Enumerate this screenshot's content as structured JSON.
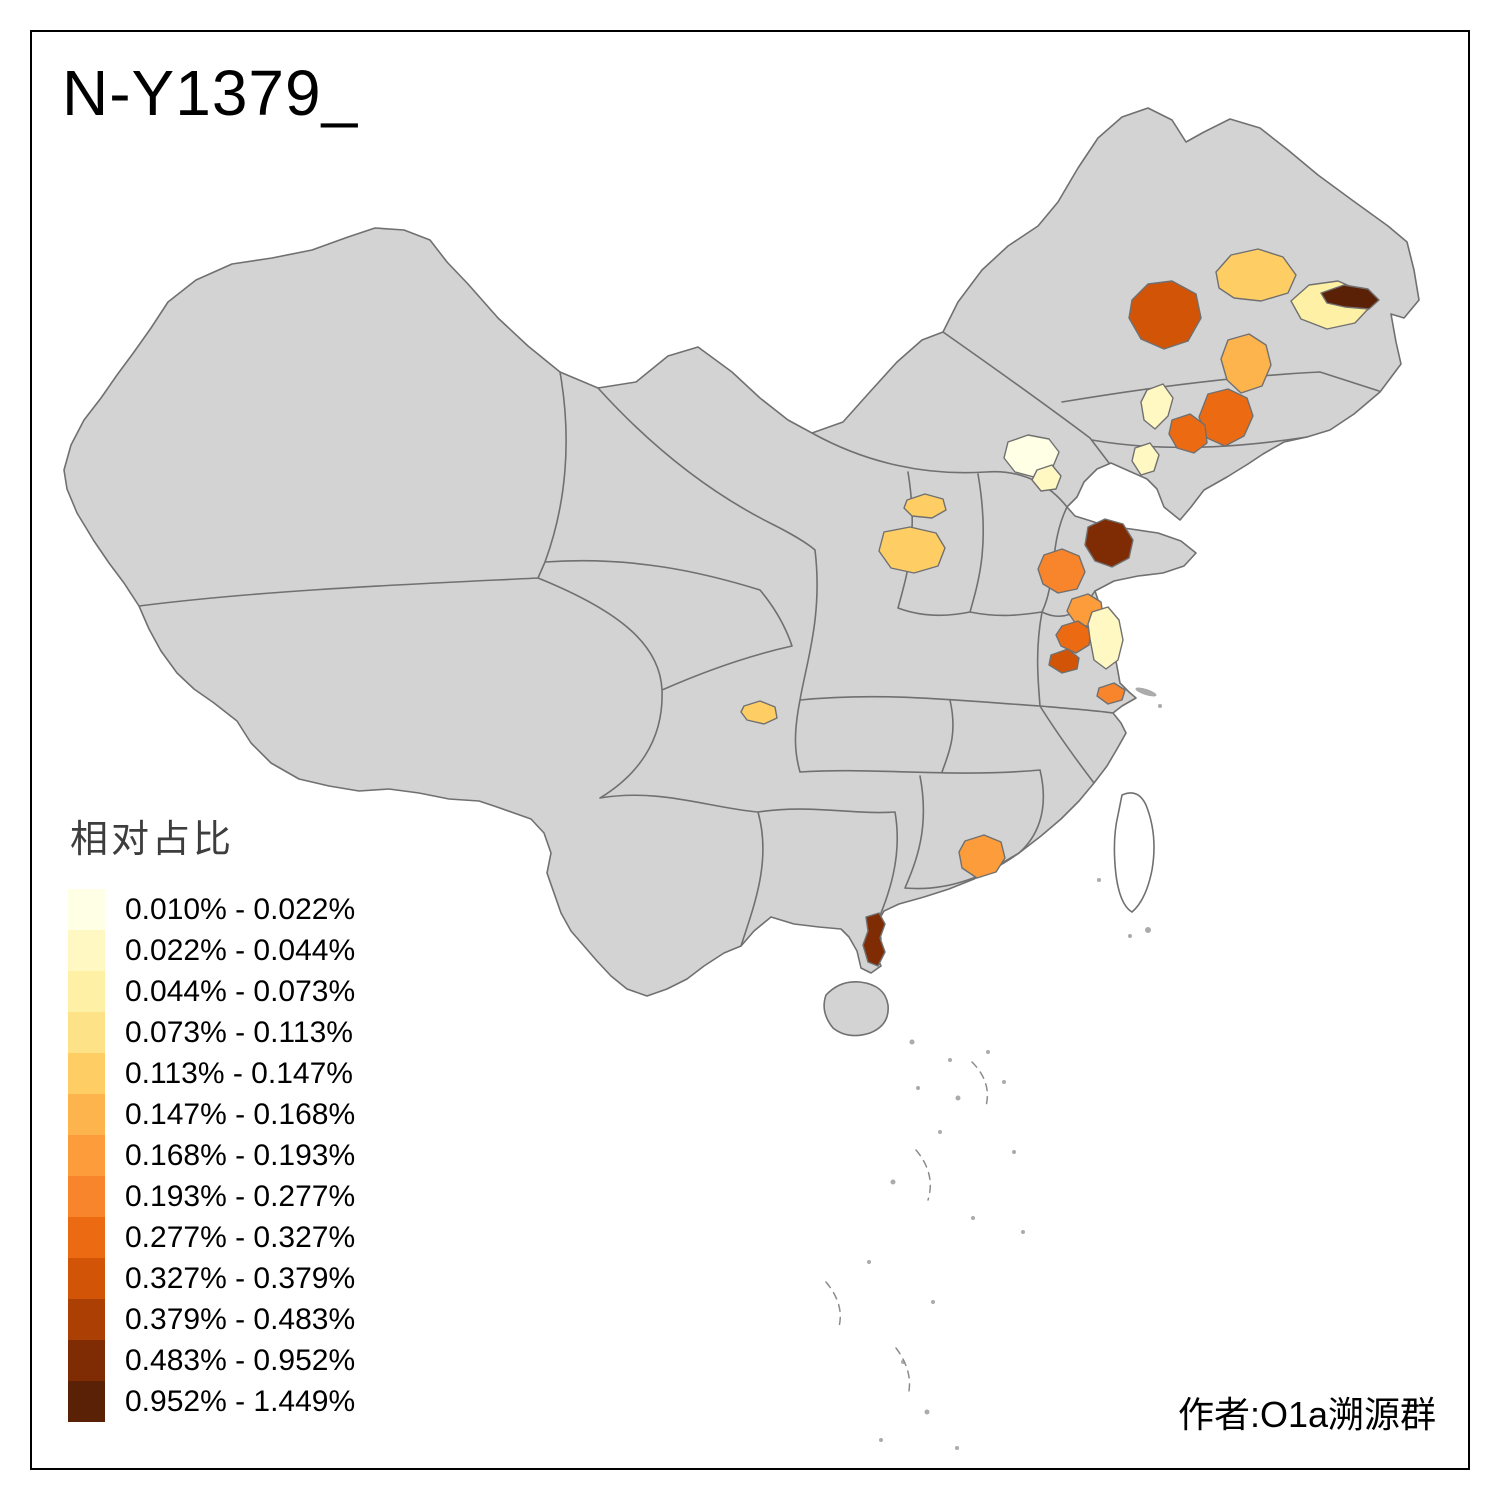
{
  "title": "N-Y1379_",
  "author": "作者:O1a溯源群",
  "legend": {
    "title": "相对占比",
    "items": [
      {
        "range": "0.010% - 0.022%",
        "color": "#FFFFE5"
      },
      {
        "range": "0.022% - 0.044%",
        "color": "#FFF8C2"
      },
      {
        "range": "0.044% - 0.073%",
        "color": "#FEF0A4"
      },
      {
        "range": "0.073% - 0.113%",
        "color": "#FEE287"
      },
      {
        "range": "0.113% - 0.147%",
        "color": "#FECE65"
      },
      {
        "range": "0.147% - 0.168%",
        "color": "#FEB44D"
      },
      {
        "range": "0.168% - 0.193%",
        "color": "#FD9C3B"
      },
      {
        "range": "0.193% - 0.277%",
        "color": "#F8842C"
      },
      {
        "range": "0.277% - 0.327%",
        "color": "#EC6B12"
      },
      {
        "range": "0.327% - 0.379%",
        "color": "#D25407"
      },
      {
        "range": "0.379% - 0.483%",
        "color": "#AC3F03"
      },
      {
        "range": "0.483% - 0.952%",
        "color": "#7F2C05"
      },
      {
        "range": "0.952% - 1.449%",
        "color": "#5B2106"
      }
    ]
  },
  "map": {
    "land_color": "#D3D3D3",
    "border_color": "#707070",
    "no_data_fill": "#FFFFFF",
    "island_dot_color": "#ABABAB",
    "dashed_line_color": "#8C8C8C"
  }
}
